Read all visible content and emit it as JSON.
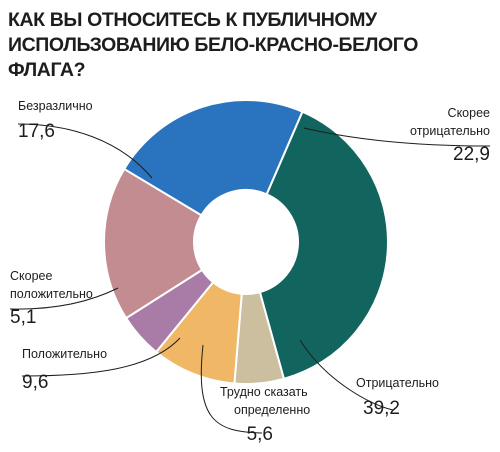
{
  "chart_data": {
    "type": "pie",
    "variant": "donut",
    "title": "КАК ВЫ ОТНОСИТЕСЬ К ПУБЛИЧНОМУ ИСПОЛЬЗОВАНИЮ БЕЛО-КРАСНО-БЕЛОГО ФЛАГА?",
    "slices": [
      {
        "label": "Отрицательно",
        "value": 39.2,
        "value_text": "39,2",
        "color": "#12655f"
      },
      {
        "label": "Трудно сказать определенно",
        "label_lines": [
          "Трудно сказать",
          "определенно"
        ],
        "value": 5.6,
        "value_text": "5,6",
        "color": "#cbbf9f"
      },
      {
        "label": "Положительно",
        "value": 9.6,
        "value_text": "9,6",
        "color": "#f0b766"
      },
      {
        "label": "Скорее положительно",
        "label_lines": [
          "Скорее",
          "положительно"
        ],
        "value": 5.1,
        "value_text": "5,1",
        "color": "#a87ca6"
      },
      {
        "label": "Безразлично",
        "value": 17.6,
        "value_text": "17,6",
        "color": "#c28c91"
      },
      {
        "label": "Скорее отрицательно",
        "label_lines": [
          "Скорее",
          "отрицательно"
        ],
        "value": 22.9,
        "value_text": "22,9",
        "color": "#2a73bf"
      }
    ],
    "legend": "none"
  }
}
